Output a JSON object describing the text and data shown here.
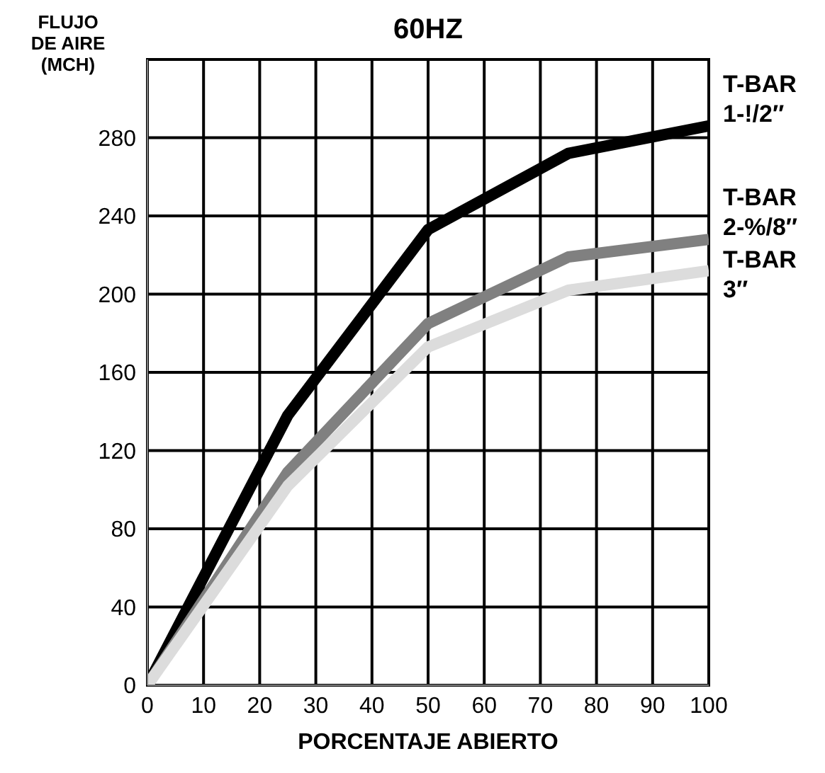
{
  "chart_data": {
    "type": "line",
    "title": "60HZ",
    "xlabel": "PORCENTAJE ABIERTO",
    "ylabel": "FLUJO\nDE AIRE\n(MCH)",
    "x": [
      0,
      25,
      50,
      75,
      100
    ],
    "series": [
      {
        "name": "T-BAR\n1-!/2″",
        "color": "#000000",
        "values": [
          0,
          138,
          233,
          272,
          286
        ]
      },
      {
        "name": "T-BAR\n2-%/8″",
        "color": "#808080",
        "values": [
          0,
          109,
          185,
          219,
          228
        ]
      },
      {
        "name": "T-BAR\n3″",
        "color": "#dcdcdc",
        "values": [
          0,
          102,
          173,
          202,
          212
        ]
      }
    ],
    "xlim": [
      0,
      100
    ],
    "xticks": [
      0,
      10,
      20,
      30,
      40,
      50,
      60,
      70,
      80,
      90,
      100
    ],
    "ylim": [
      0,
      320
    ],
    "yticks": [
      0,
      40,
      80,
      120,
      160,
      200,
      240,
      280
    ],
    "grid": true,
    "marker": "none",
    "line_style": "solid"
  }
}
